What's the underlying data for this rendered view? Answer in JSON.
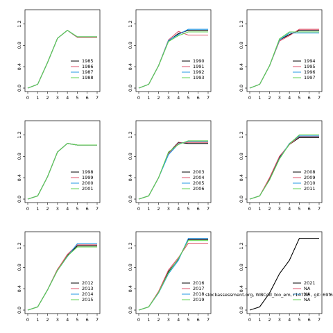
{
  "chart_data": [
    {
      "type": "line",
      "xlim": [
        0,
        7
      ],
      "ylim": [
        0,
        1.4
      ],
      "xticks": [
        "0",
        "1",
        "2",
        "3",
        "4",
        "5",
        "6",
        "7"
      ],
      "yticks": [
        "0.0",
        "0.4",
        "0.8",
        "1.2"
      ],
      "legend": "bottom-right",
      "series": [
        {
          "name": "1985",
          "color": "#000000",
          "x": [
            0,
            1,
            2,
            3,
            4,
            5,
            6,
            7
          ],
          "y": [
            0.0,
            0.07,
            0.48,
            0.93,
            1.08,
            0.95,
            0.95,
            0.95
          ]
        },
        {
          "name": "1986",
          "color": "#df536b",
          "x": [
            0,
            1,
            2,
            3,
            4,
            5,
            6,
            7
          ],
          "y": [
            0.0,
            0.07,
            0.48,
            0.93,
            1.08,
            0.95,
            0.95,
            0.95
          ]
        },
        {
          "name": "1987",
          "color": "#2297e6",
          "x": [
            0,
            1,
            2,
            3,
            4,
            5,
            6,
            7
          ],
          "y": [
            0.0,
            0.07,
            0.48,
            0.93,
            1.08,
            0.96,
            0.96,
            0.96
          ]
        },
        {
          "name": "1988",
          "color": "#61d04f",
          "x": [
            0,
            1,
            2,
            3,
            4,
            5,
            6,
            7
          ],
          "y": [
            0.0,
            0.07,
            0.48,
            0.93,
            1.08,
            0.96,
            0.96,
            0.96
          ]
        }
      ]
    },
    {
      "type": "line",
      "xlim": [
        0,
        7
      ],
      "ylim": [
        0,
        1.4
      ],
      "xticks": [
        "0",
        "1",
        "2",
        "3",
        "4",
        "5",
        "6",
        "7"
      ],
      "yticks": [
        "0.0",
        "0.4",
        "0.8",
        "1.2"
      ],
      "legend": "bottom-right",
      "series": [
        {
          "name": "1990",
          "color": "#000000",
          "x": [
            0,
            1,
            2,
            3,
            4,
            5,
            6,
            7
          ],
          "y": [
            0.0,
            0.07,
            0.42,
            0.88,
            1.02,
            1.08,
            1.08,
            1.08
          ]
        },
        {
          "name": "1991",
          "color": "#df536b",
          "x": [
            0,
            1,
            2,
            3,
            4,
            5,
            6,
            7
          ],
          "y": [
            0.0,
            0.07,
            0.42,
            0.9,
            1.06,
            0.99,
            0.99,
            0.99
          ]
        },
        {
          "name": "1992",
          "color": "#2297e6",
          "x": [
            0,
            1,
            2,
            3,
            4,
            5,
            6,
            7
          ],
          "y": [
            0.0,
            0.07,
            0.42,
            0.89,
            1.0,
            1.1,
            1.1,
            1.1
          ]
        },
        {
          "name": "1993",
          "color": "#61d04f",
          "x": [
            0,
            1,
            2,
            3,
            4,
            5,
            6,
            7
          ],
          "y": [
            0.0,
            0.07,
            0.42,
            0.87,
            0.98,
            1.05,
            1.05,
            1.05
          ]
        }
      ]
    },
    {
      "type": "line",
      "xlim": [
        0,
        7
      ],
      "ylim": [
        0,
        1.4
      ],
      "xticks": [
        "0",
        "1",
        "2",
        "3",
        "4",
        "5",
        "6",
        "7"
      ],
      "yticks": [
        "0.0",
        "0.4",
        "0.8",
        "1.2"
      ],
      "legend": "bottom-right",
      "series": [
        {
          "name": "1994",
          "color": "#000000",
          "x": [
            0,
            1,
            2,
            3,
            4,
            5,
            6,
            7
          ],
          "y": [
            0.0,
            0.07,
            0.42,
            0.9,
            1.0,
            1.08,
            1.08,
            1.08
          ]
        },
        {
          "name": "1995",
          "color": "#df536b",
          "x": [
            0,
            1,
            2,
            3,
            4,
            5,
            6,
            7
          ],
          "y": [
            0.0,
            0.07,
            0.42,
            0.88,
            0.98,
            1.1,
            1.1,
            1.1
          ]
        },
        {
          "name": "1996",
          "color": "#2297e6",
          "x": [
            0,
            1,
            2,
            3,
            4,
            5,
            6,
            7
          ],
          "y": [
            0.0,
            0.07,
            0.42,
            0.9,
            1.03,
            1.03,
            1.03,
            1.03
          ]
        },
        {
          "name": "1997",
          "color": "#61d04f",
          "x": [
            0,
            1,
            2,
            3,
            4,
            5,
            6,
            7
          ],
          "y": [
            0.0,
            0.07,
            0.42,
            0.92,
            1.05,
            1.05,
            1.05,
            1.05
          ]
        }
      ]
    },
    {
      "type": "line",
      "xlim": [
        0,
        7
      ],
      "ylim": [
        0,
        1.4
      ],
      "xticks": [
        "0",
        "1",
        "2",
        "3",
        "4",
        "5",
        "6",
        "7"
      ],
      "yticks": [
        "0.0",
        "0.4",
        "0.8",
        "1.2"
      ],
      "legend": "bottom-right",
      "series": [
        {
          "name": "1998",
          "color": "#000000",
          "x": [
            0,
            1,
            2,
            3,
            4,
            5,
            6,
            7
          ],
          "y": [
            0.0,
            0.06,
            0.42,
            0.88,
            1.04,
            1.01,
            1.01,
            1.01
          ]
        },
        {
          "name": "1999",
          "color": "#df536b",
          "x": [
            0,
            1,
            2,
            3,
            4,
            5,
            6,
            7
          ],
          "y": [
            0.0,
            0.06,
            0.42,
            0.88,
            1.04,
            1.01,
            1.01,
            1.01
          ]
        },
        {
          "name": "2000",
          "color": "#2297e6",
          "x": [
            0,
            1,
            2,
            3,
            4,
            5,
            6,
            7
          ],
          "y": [
            0.0,
            0.06,
            0.42,
            0.88,
            1.04,
            1.01,
            1.01,
            1.01
          ]
        },
        {
          "name": "2001",
          "color": "#61d04f",
          "x": [
            0,
            1,
            2,
            3,
            4,
            5,
            6,
            7
          ],
          "y": [
            0.0,
            0.06,
            0.42,
            0.88,
            1.04,
            1.01,
            1.01,
            1.01
          ]
        }
      ]
    },
    {
      "type": "line",
      "xlim": [
        0,
        7
      ],
      "ylim": [
        0,
        1.4
      ],
      "xticks": [
        "0",
        "1",
        "2",
        "3",
        "4",
        "5",
        "6",
        "7"
      ],
      "yticks": [
        "0.0",
        "0.4",
        "0.8",
        "1.2"
      ],
      "legend": "bottom-right",
      "series": [
        {
          "name": "2003",
          "color": "#000000",
          "x": [
            0,
            1,
            2,
            3,
            4,
            5,
            6,
            7
          ],
          "y": [
            0.0,
            0.06,
            0.4,
            0.86,
            1.06,
            1.04,
            1.04,
            1.04
          ]
        },
        {
          "name": "2004",
          "color": "#df536b",
          "x": [
            0,
            1,
            2,
            3,
            4,
            5,
            6,
            7
          ],
          "y": [
            0.0,
            0.06,
            0.4,
            0.85,
            1.05,
            1.06,
            1.06,
            1.06
          ]
        },
        {
          "name": "2005",
          "color": "#2297e6",
          "x": [
            0,
            1,
            2,
            3,
            4,
            5,
            6,
            7
          ],
          "y": [
            0.0,
            0.06,
            0.4,
            0.83,
            1.03,
            1.08,
            1.08,
            1.08
          ]
        },
        {
          "name": "2006",
          "color": "#61d04f",
          "x": [
            0,
            1,
            2,
            3,
            4,
            5,
            6,
            7
          ],
          "y": [
            0.0,
            0.06,
            0.4,
            0.88,
            1.02,
            1.09,
            1.09,
            1.09
          ]
        }
      ]
    },
    {
      "type": "line",
      "xlim": [
        0,
        7
      ],
      "ylim": [
        0,
        1.4
      ],
      "xticks": [
        "0",
        "1",
        "2",
        "3",
        "4",
        "5",
        "6",
        "7"
      ],
      "yticks": [
        "0.0",
        "0.4",
        "0.8",
        "1.2"
      ],
      "legend": "bottom-right",
      "series": [
        {
          "name": "2008",
          "color": "#000000",
          "x": [
            0,
            1,
            2,
            3,
            4,
            5,
            6,
            7
          ],
          "y": [
            0.0,
            0.06,
            0.38,
            0.78,
            1.02,
            1.15,
            1.15,
            1.15
          ]
        },
        {
          "name": "2009",
          "color": "#df536b",
          "x": [
            0,
            1,
            2,
            3,
            4,
            5,
            6,
            7
          ],
          "y": [
            0.0,
            0.06,
            0.4,
            0.8,
            1.02,
            1.17,
            1.17,
            1.17
          ]
        },
        {
          "name": "2010",
          "color": "#2297e6",
          "x": [
            0,
            1,
            2,
            3,
            4,
            5,
            6,
            7
          ],
          "y": [
            0.0,
            0.06,
            0.36,
            0.76,
            1.04,
            1.18,
            1.18,
            1.18
          ]
        },
        {
          "name": "2011",
          "color": "#61d04f",
          "x": [
            0,
            1,
            2,
            3,
            4,
            5,
            6,
            7
          ],
          "y": [
            0.0,
            0.06,
            0.36,
            0.75,
            1.03,
            1.2,
            1.2,
            1.2
          ]
        }
      ]
    },
    {
      "type": "line",
      "xlim": [
        0,
        7
      ],
      "ylim": [
        0,
        1.4
      ],
      "xticks": [
        "0",
        "1",
        "2",
        "3",
        "4",
        "5",
        "6",
        "7"
      ],
      "yticks": [
        "0.0",
        "0.4",
        "0.8",
        "1.2"
      ],
      "legend": "bottom-right",
      "series": [
        {
          "name": "2012",
          "color": "#000000",
          "x": [
            0,
            1,
            2,
            3,
            4,
            5,
            6,
            7
          ],
          "y": [
            0.0,
            0.06,
            0.38,
            0.76,
            1.02,
            1.2,
            1.2,
            1.2
          ]
        },
        {
          "name": "2013",
          "color": "#df536b",
          "x": [
            0,
            1,
            2,
            3,
            4,
            5,
            6,
            7
          ],
          "y": [
            0.0,
            0.06,
            0.38,
            0.76,
            1.04,
            1.22,
            1.22,
            1.22
          ]
        },
        {
          "name": "2014",
          "color": "#2297e6",
          "x": [
            0,
            1,
            2,
            3,
            4,
            5,
            6,
            7
          ],
          "y": [
            0.0,
            0.06,
            0.38,
            0.74,
            1.0,
            1.24,
            1.24,
            1.24
          ]
        },
        {
          "name": "2015",
          "color": "#61d04f",
          "x": [
            0,
            1,
            2,
            3,
            4,
            5,
            6,
            7
          ],
          "y": [
            0.0,
            0.06,
            0.38,
            0.74,
            1.01,
            1.18,
            1.18,
            1.18
          ]
        }
      ]
    },
    {
      "type": "line",
      "xlim": [
        0,
        7
      ],
      "ylim": [
        0,
        1.4
      ],
      "xticks": [
        "0",
        "1",
        "2",
        "3",
        "4",
        "5",
        "6",
        "7"
      ],
      "yticks": [
        "0.0",
        "0.4",
        "0.8",
        "1.2"
      ],
      "legend": "bottom-right",
      "series": [
        {
          "name": "2016",
          "color": "#000000",
          "x": [
            0,
            1,
            2,
            3,
            4,
            5,
            6,
            7
          ],
          "y": [
            0.0,
            0.06,
            0.33,
            0.72,
            0.95,
            1.32,
            1.32,
            1.32
          ]
        },
        {
          "name": "2017",
          "color": "#df536b",
          "x": [
            0,
            1,
            2,
            3,
            4,
            5,
            6,
            7
          ],
          "y": [
            0.0,
            0.06,
            0.35,
            0.75,
            0.98,
            1.25,
            1.25,
            1.25
          ]
        },
        {
          "name": "2018",
          "color": "#2297e6",
          "x": [
            0,
            1,
            2,
            3,
            4,
            5,
            6,
            7
          ],
          "y": [
            0.0,
            0.06,
            0.32,
            0.68,
            0.93,
            1.34,
            1.34,
            1.34
          ]
        },
        {
          "name": "2019",
          "color": "#61d04f",
          "x": [
            0,
            1,
            2,
            3,
            4,
            5,
            6,
            7
          ],
          "y": [
            0.0,
            0.06,
            0.33,
            0.7,
            0.96,
            1.3,
            1.3,
            1.3
          ]
        }
      ]
    },
    {
      "type": "line",
      "xlim": [
        0,
        7
      ],
      "ylim": [
        0,
        1.4
      ],
      "xticks": [
        "0",
        "1",
        "2",
        "3",
        "4",
        "5",
        "6",
        "7"
      ],
      "yticks": [
        "0.0",
        "0.4",
        "0.8",
        "1.2"
      ],
      "legend": "bottom-right",
      "series": [
        {
          "name": "2021",
          "color": "#000000",
          "x": [
            0,
            1,
            2,
            3,
            4,
            5,
            6,
            7
          ],
          "y": [
            0.0,
            0.06,
            0.32,
            0.68,
            0.93,
            1.34,
            1.34,
            1.34
          ]
        },
        {
          "name": "NA",
          "color": "#df536b",
          "x": [],
          "y": []
        },
        {
          "name": "NA",
          "color": "#2297e6",
          "x": [],
          "y": []
        },
        {
          "name": "NA",
          "color": "#61d04f",
          "x": [],
          "y": []
        }
      ]
    }
  ],
  "figure": {
    "source_note": "stockassessment.org, WBCod_bio_em, r14723 , git: 69f629d0437c"
  }
}
